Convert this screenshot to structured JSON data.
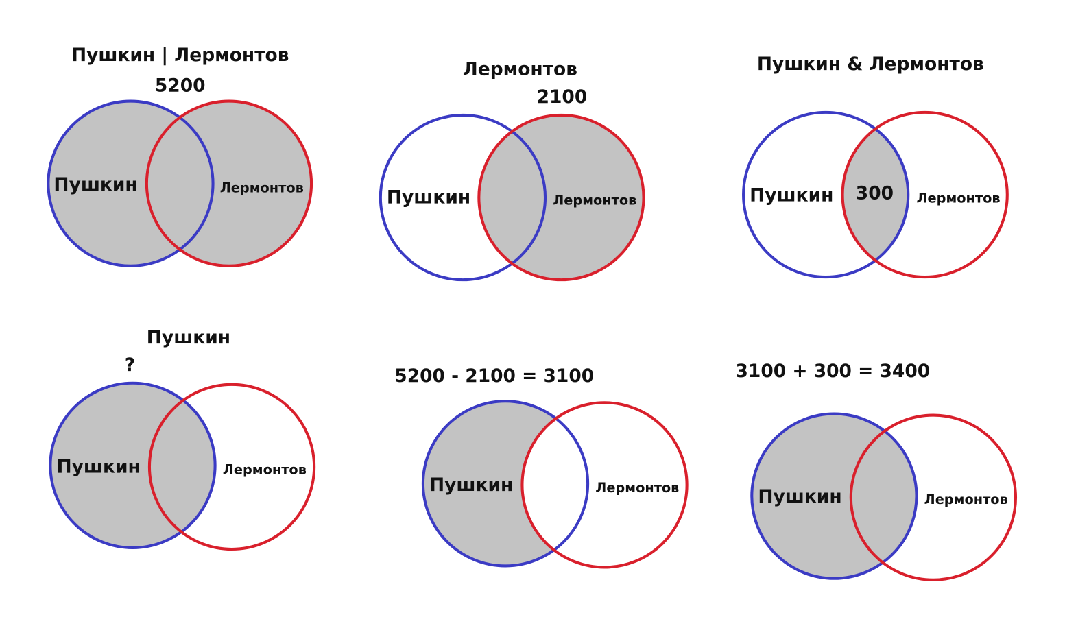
{
  "panels": [
    {
      "title": "Пушкин | Лермонтов",
      "value": "5200",
      "left_label": "Пушкин",
      "right_label": "Лермонтов"
    },
    {
      "title": "Лермонтов",
      "value": "2100",
      "left_label": "Пушкин",
      "right_label": "Лермонтов"
    },
    {
      "title": "Пушкин & Лермонтов",
      "center_label": "300",
      "left_label": "Пушкин",
      "right_label": "Лермонтов"
    },
    {
      "title": "Пушкин",
      "value": "?",
      "left_label": "Пушкин",
      "right_label": "Лермонтов"
    },
    {
      "title": "5200 - 2100 = 3100",
      "left_label": "Пушкин",
      "right_label": "Лермонтов"
    },
    {
      "title": "3100 + 300 = 3400",
      "left_label": "Пушкин",
      "right_label": "Лермонтов"
    }
  ]
}
